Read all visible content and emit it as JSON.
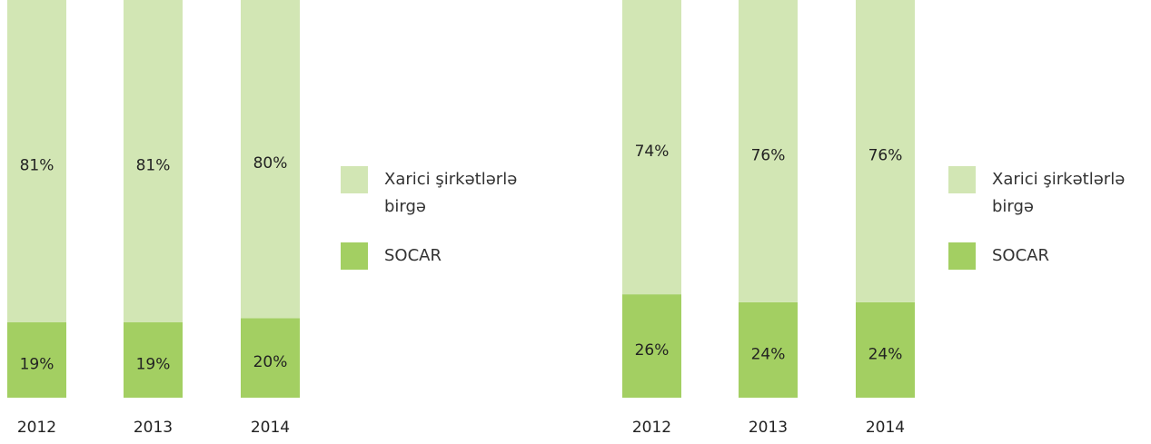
{
  "chart_data": [
    {
      "type": "stacked_bar",
      "categories": [
        "2012",
        "2013",
        "2014"
      ],
      "series": [
        {
          "name": "Xarici şirkətlərlə birgə",
          "color": "#d2e6b4",
          "values": [
            81,
            81,
            80
          ],
          "value_labels": [
            "81%",
            "81%",
            "80%"
          ]
        },
        {
          "name": "SOCAR",
          "color": "#a3cf62",
          "values": [
            19,
            19,
            20
          ],
          "value_labels": [
            "19%",
            "19%",
            "20%"
          ]
        }
      ]
    },
    {
      "type": "stacked_bar",
      "categories": [
        "2012",
        "2013",
        "2014"
      ],
      "series": [
        {
          "name": "Xarici şirkətlərlə birgə",
          "color": "#d2e6b4",
          "values": [
            74,
            76,
            76
          ],
          "value_labels": [
            "74%",
            "76%",
            "76%"
          ]
        },
        {
          "name": "SOCAR",
          "color": "#a3cf62",
          "values": [
            26,
            24,
            24
          ],
          "value_labels": [
            "26%",
            "24%",
            "24%"
          ]
        }
      ]
    }
  ]
}
